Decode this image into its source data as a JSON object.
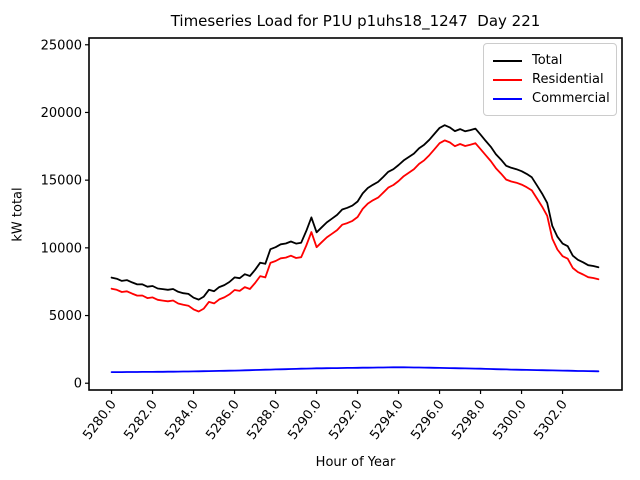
{
  "chart_data": {
    "type": "line",
    "title": "Timeseries Load for P1U p1uhs18_1247  Day 221",
    "xlabel": "Hour of Year",
    "ylabel": "kW total",
    "xlim": [
      5278.9,
      5304.9
    ],
    "ylim": [
      -500,
      25500
    ],
    "grid": false,
    "legend_position": "upper right",
    "xticks": {
      "values": [
        5280,
        5282,
        5284,
        5286,
        5288,
        5290,
        5292,
        5294,
        5296,
        5298,
        5300,
        5302
      ],
      "labels": [
        "5280.0",
        "5282.0",
        "5284.0",
        "5286.0",
        "5288.0",
        "5290.0",
        "5292.0",
        "5294.0",
        "5296.0",
        "5298.0",
        "5300.0",
        "5302.0"
      ]
    },
    "yticks": {
      "values": [
        0,
        5000,
        10000,
        15000,
        20000,
        25000
      ],
      "labels": [
        "0",
        "5000",
        "10000",
        "15000",
        "20000",
        "25000"
      ]
    },
    "x": [
      5280.0,
      5280.25,
      5280.5,
      5280.75,
      5281.0,
      5281.25,
      5281.5,
      5281.75,
      5282.0,
      5282.25,
      5282.5,
      5282.75,
      5283.0,
      5283.25,
      5283.5,
      5283.75,
      5284.0,
      5284.25,
      5284.5,
      5284.75,
      5285.0,
      5285.25,
      5285.5,
      5285.75,
      5286.0,
      5286.25,
      5286.5,
      5286.75,
      5287.0,
      5287.25,
      5287.5,
      5287.75,
      5288.0,
      5288.25,
      5288.5,
      5288.75,
      5289.0,
      5289.25,
      5289.5,
      5289.75,
      5290.0,
      5290.25,
      5290.5,
      5290.75,
      5291.0,
      5291.25,
      5291.5,
      5291.75,
      5292.0,
      5292.25,
      5292.5,
      5292.75,
      5293.0,
      5293.25,
      5293.5,
      5293.75,
      5294.0,
      5294.25,
      5294.5,
      5294.75,
      5295.0,
      5295.25,
      5295.5,
      5295.75,
      5296.0,
      5296.25,
      5296.5,
      5296.75,
      5297.0,
      5297.25,
      5297.5,
      5297.75,
      5298.0,
      5298.25,
      5298.5,
      5298.75,
      5299.0,
      5299.25,
      5299.5,
      5299.75,
      5300.0,
      5300.25,
      5300.5,
      5300.75,
      5301.0,
      5301.25,
      5301.5,
      5301.75,
      5302.0,
      5302.25,
      5302.5,
      5302.75,
      5303.0,
      5303.25,
      5303.5,
      5303.75
    ],
    "series": [
      {
        "name": "Total",
        "color": "#000000",
        "values": [
          7800,
          7720,
          7560,
          7620,
          7450,
          7300,
          7310,
          7130,
          7180,
          7000,
          6950,
          6900,
          6960,
          6750,
          6650,
          6600,
          6320,
          6180,
          6400,
          6900,
          6800,
          7100,
          7250,
          7480,
          7820,
          7760,
          8050,
          7920,
          8380,
          8900,
          8820,
          9900,
          10050,
          10260,
          10320,
          10470,
          10310,
          10380,
          11250,
          12250,
          11150,
          11520,
          11880,
          12150,
          12430,
          12830,
          12960,
          13120,
          13420,
          14020,
          14420,
          14660,
          14870,
          15230,
          15620,
          15810,
          16120,
          16460,
          16710,
          16960,
          17360,
          17620,
          17980,
          18420,
          18860,
          19060,
          18900,
          18620,
          18770,
          18610,
          18700,
          18810,
          18360,
          17900,
          17460,
          16920,
          16510,
          16060,
          15910,
          15810,
          15660,
          15460,
          15210,
          14620,
          14010,
          13320,
          11620,
          10820,
          10310,
          10120,
          9420,
          9120,
          8930,
          8720,
          8660,
          8560
        ]
      },
      {
        "name": "Residential",
        "color": "#ff0000",
        "values": [
          6980,
          6900,
          6740,
          6790,
          6620,
          6470,
          6480,
          6290,
          6340,
          6160,
          6100,
          6050,
          6110,
          5890,
          5790,
          5730,
          5450,
          5300,
          5510,
          6010,
          5900,
          6190,
          6340,
          6560,
          6890,
          6820,
          7100,
          6960,
          7400,
          7910,
          7820,
          8890,
          9030,
          9230,
          9280,
          9420,
          9250,
          9310,
          10170,
          11160,
          10050,
          10420,
          10770,
          11040,
          11310,
          11710,
          11830,
          11990,
          12280,
          12880,
          13270,
          13510,
          13710,
          14070,
          14450,
          14640,
          14940,
          15290,
          15540,
          15800,
          16200,
          16470,
          16840,
          17280,
          17730,
          17940,
          17790,
          17510,
          17670,
          17520,
          17620,
          17730,
          17290,
          16840,
          16410,
          15880,
          15480,
          15040,
          14900,
          14810,
          14670,
          14480,
          14240,
          13650,
          13050,
          12370,
          10680,
          9880,
          9380,
          9200,
          8510,
          8210,
          8030,
          7830,
          7770,
          7680
        ]
      },
      {
        "name": "Commercial",
        "color": "#0000ff",
        "values": [
          820,
          822,
          825,
          827,
          830,
          832,
          835,
          837,
          840,
          844,
          848,
          851,
          855,
          860,
          865,
          870,
          875,
          881,
          887,
          894,
          900,
          908,
          915,
          922,
          930,
          941,
          952,
          964,
          975,
          986,
          998,
          1009,
          1020,
          1030,
          1040,
          1050,
          1060,
          1070,
          1080,
          1090,
          1100,
          1105,
          1110,
          1115,
          1120,
          1125,
          1130,
          1135,
          1140,
          1145,
          1150,
          1155,
          1160,
          1165,
          1170,
          1175,
          1180,
          1175,
          1170,
          1165,
          1160,
          1152,
          1145,
          1137,
          1130,
          1122,
          1115,
          1107,
          1100,
          1092,
          1085,
          1077,
          1070,
          1060,
          1050,
          1040,
          1030,
          1020,
          1010,
          1000,
          990,
          982,
          975,
          967,
          960,
          952,
          945,
          937,
          930,
          922,
          915,
          907,
          900,
          895,
          888,
          880
        ]
      }
    ]
  }
}
